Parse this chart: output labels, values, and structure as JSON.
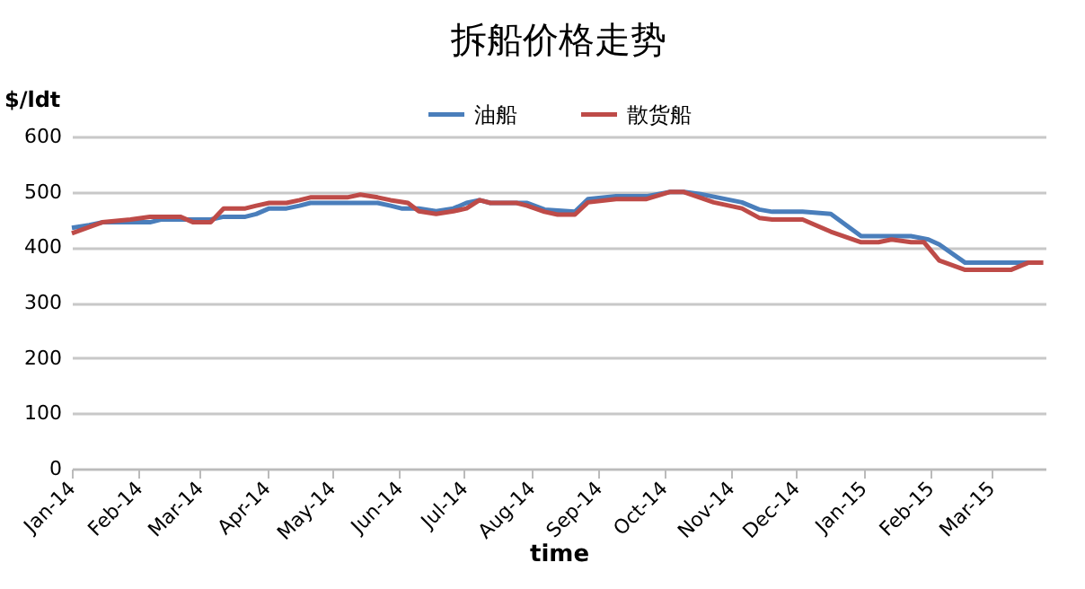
{
  "chart_data": {
    "type": "line",
    "title": "拆船价格走势",
    "xlabel": "time",
    "ylabel": "$/ldt",
    "legend": "top",
    "grid": "y",
    "xlim": [
      "2014-01-01",
      "2015-03-26"
    ],
    "xticks": [
      {
        "value": "2014-01-01",
        "label": "Jan-14"
      },
      {
        "value": "2014-02-01",
        "label": "Feb-14"
      },
      {
        "value": "2014-03-01",
        "label": "Mar-14"
      },
      {
        "value": "2014-04-01",
        "label": "Apr-14"
      },
      {
        "value": "2014-05-01",
        "label": "May-14"
      },
      {
        "value": "2014-06-01",
        "label": "Jun-14"
      },
      {
        "value": "2014-07-01",
        "label": "Jul-14"
      },
      {
        "value": "2014-08-01",
        "label": "Aug-14"
      },
      {
        "value": "2014-09-01",
        "label": "Sep-14"
      },
      {
        "value": "2014-10-01",
        "label": "Oct-14"
      },
      {
        "value": "2014-11-01",
        "label": "Nov-14"
      },
      {
        "value": "2014-12-01",
        "label": "Dec-14"
      },
      {
        "value": "2015-01-01",
        "label": "Jan-15"
      },
      {
        "value": "2015-02-01",
        "label": "Feb-15"
      },
      {
        "value": "2015-03-01",
        "label": "Mar-15"
      }
    ],
    "ylim": [
      0,
      600
    ],
    "yticks": [
      0,
      100,
      200,
      300,
      400,
      500,
      600
    ],
    "series": [
      {
        "name": "油船",
        "color": "#4a7ebb",
        "x": [
          "2014-01-01",
          "2014-01-09",
          "2014-01-15",
          "2014-02-06",
          "2014-02-11",
          "2014-03-06",
          "2014-03-12",
          "2014-03-22",
          "2014-03-27",
          "2014-04-02",
          "2014-04-10",
          "2014-04-16",
          "2014-04-21",
          "2014-05-22",
          "2014-05-28",
          "2014-06-02",
          "2014-06-10",
          "2014-06-18",
          "2014-06-26",
          "2014-07-02",
          "2014-07-08",
          "2014-07-13",
          "2014-07-30",
          "2014-08-07",
          "2014-08-21",
          "2014-08-27",
          "2014-09-09",
          "2014-09-23",
          "2014-10-04",
          "2014-10-10",
          "2014-10-18",
          "2014-11-06",
          "2014-11-14",
          "2014-11-20",
          "2014-12-04",
          "2014-12-17",
          "2014-12-31",
          "2015-01-23",
          "2015-01-31",
          "2015-02-05",
          "2015-02-17",
          "2015-03-24"
        ],
        "values": [
          435,
          440,
          445,
          445,
          450,
          450,
          455,
          455,
          460,
          470,
          470,
          475,
          480,
          480,
          475,
          470,
          470,
          465,
          470,
          480,
          485,
          480,
          480,
          468,
          464,
          487,
          492,
          492,
          500,
          500,
          496,
          481,
          468,
          464,
          464,
          460,
          420,
          420,
          414,
          405,
          372,
          372
        ]
      },
      {
        "name": "散货船",
        "color": "#be4b48",
        "x": [
          "2014-01-01",
          "2014-01-15",
          "2014-01-28",
          "2014-02-06",
          "2014-02-20",
          "2014-02-26",
          "2014-03-06",
          "2014-03-12",
          "2014-03-22",
          "2014-03-27",
          "2014-04-02",
          "2014-04-10",
          "2014-04-16",
          "2014-04-21",
          "2014-05-08",
          "2014-05-14",
          "2014-05-22",
          "2014-05-28",
          "2014-06-05",
          "2014-06-10",
          "2014-06-18",
          "2014-06-26",
          "2014-07-02",
          "2014-07-08",
          "2014-07-13",
          "2014-07-25",
          "2014-07-30",
          "2014-08-07",
          "2014-08-13",
          "2014-08-21",
          "2014-08-27",
          "2014-09-09",
          "2014-09-23",
          "2014-10-04",
          "2014-10-10",
          "2014-10-24",
          "2014-11-06",
          "2014-11-14",
          "2014-11-20",
          "2014-12-04",
          "2014-12-17",
          "2014-12-31",
          "2015-01-08",
          "2015-01-14",
          "2015-01-23",
          "2015-01-29",
          "2015-02-05",
          "2015-02-17",
          "2015-03-10",
          "2015-03-18",
          "2015-03-25"
        ],
        "values": [
          425,
          445,
          450,
          455,
          455,
          445,
          445,
          470,
          470,
          475,
          480,
          480,
          485,
          490,
          490,
          495,
          490,
          485,
          480,
          465,
          460,
          465,
          470,
          485,
          480,
          480,
          475,
          464,
          459,
          459,
          481,
          487,
          487,
          500,
          500,
          481,
          470,
          453,
          450,
          450,
          428,
          409,
          409,
          414,
          409,
          409,
          376,
          359,
          359,
          372,
          372
        ]
      }
    ]
  }
}
